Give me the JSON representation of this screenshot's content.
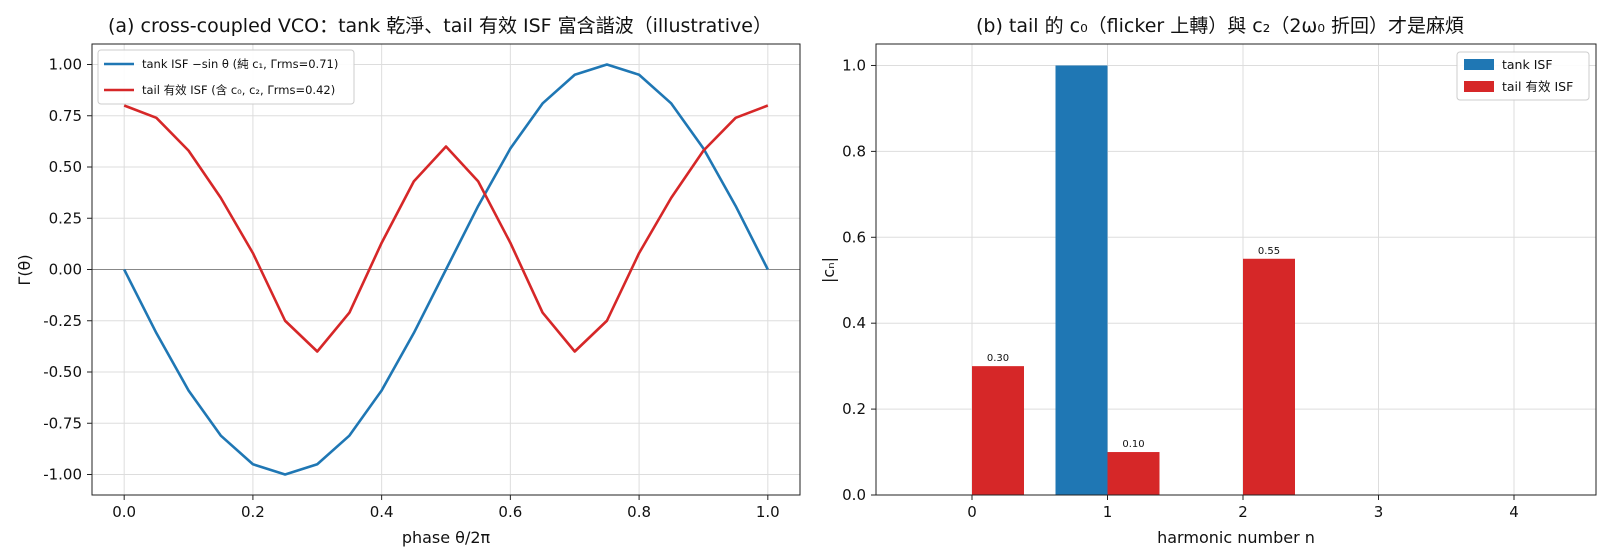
{
  "figure": {
    "colors": {
      "tank": "#1f77b4",
      "tail": "#d62728",
      "grid": "#dddddd",
      "zero": "#888888"
    }
  },
  "chart_data": [
    {
      "type": "line",
      "title": "(a) cross-coupled VCO：tank 乾淨、tail 有效 ISF 富含諧波（illustrative）",
      "xlabel": "phase θ/2π",
      "ylabel": "Γ(θ)",
      "xlim": [
        -0.05,
        1.05
      ],
      "ylim": [
        -1.1,
        1.1
      ],
      "xticks": [
        "0.0",
        "0.2",
        "0.4",
        "0.6",
        "0.8",
        "1.0"
      ],
      "yticks": [
        "-1.00",
        "-0.75",
        "-0.50",
        "-0.25",
        "0.00",
        "0.25",
        "0.50",
        "0.75",
        "1.00"
      ],
      "grid": true,
      "legend_position": "top-left",
      "x": [
        0,
        0.05,
        0.1,
        0.15,
        0.2,
        0.25,
        0.3,
        0.35,
        0.4,
        0.45,
        0.5,
        0.55,
        0.6,
        0.65,
        0.7,
        0.75,
        0.8,
        0.85,
        0.9,
        0.95,
        1.0
      ],
      "series": [
        {
          "name": "tank ISF −sin θ (純 c₁, Γrms=0.71)",
          "color": "#1f77b4",
          "values": [
            0.0,
            -0.31,
            -0.59,
            -0.81,
            -0.95,
            -1.0,
            -0.95,
            -0.81,
            -0.59,
            -0.31,
            0.0,
            0.31,
            0.59,
            0.81,
            0.95,
            1.0,
            0.95,
            0.81,
            0.59,
            0.31,
            0.0
          ]
        },
        {
          "name": "tail 有效 ISF (含 c₀, c₂, Γrms=0.42)",
          "color": "#d62728",
          "values": [
            0.8,
            0.74,
            0.58,
            0.35,
            0.08,
            -0.25,
            -0.4,
            -0.21,
            0.13,
            0.43,
            0.6,
            0.43,
            0.13,
            -0.21,
            -0.4,
            -0.25,
            0.08,
            0.35,
            0.58,
            0.74,
            0.8
          ]
        }
      ]
    },
    {
      "type": "bar",
      "title": "(b) tail 的 c₀（flicker 上轉）與 c₂（2ω₀ 折回）才是麻煩",
      "xlabel": "harmonic number n",
      "ylabel": "|cₙ|",
      "categories": [
        "0",
        "1",
        "2",
        "3",
        "4"
      ],
      "ylim": [
        0,
        1.05
      ],
      "yticks": [
        "0.0",
        "0.2",
        "0.4",
        "0.6",
        "0.8",
        "1.0"
      ],
      "grid": true,
      "legend_position": "top-right",
      "series": [
        {
          "name": "tank ISF",
          "color": "#1f77b4",
          "values": [
            0,
            1.0,
            0,
            0,
            0
          ],
          "labels": [
            "",
            "",
            "",
            "",
            ""
          ]
        },
        {
          "name": "tail 有效 ISF",
          "color": "#d62728",
          "values": [
            0.3,
            0.1,
            0.55,
            0,
            0
          ],
          "labels": [
            "0.30",
            "0.10",
            "0.55",
            "",
            ""
          ]
        }
      ]
    }
  ]
}
